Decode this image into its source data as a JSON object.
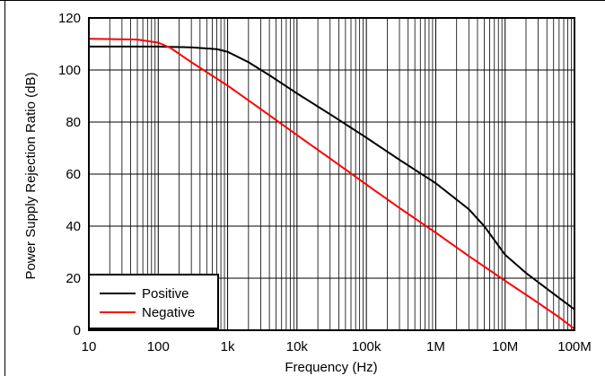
{
  "chart_data": {
    "type": "line",
    "title": "",
    "xlabel": "Frequency (Hz)",
    "ylabel": "Power Supply Rejection Ratio (dB)",
    "x_scale": "log",
    "xlim": [
      10,
      100000000
    ],
    "ylim": [
      0,
      120
    ],
    "grid": true,
    "legend_position": "bottom-left",
    "x_ticks": [
      {
        "value": 10,
        "label": "10"
      },
      {
        "value": 100,
        "label": "100"
      },
      {
        "value": 1000,
        "label": "1k"
      },
      {
        "value": 10000,
        "label": "10k"
      },
      {
        "value": 100000,
        "label": "100k"
      },
      {
        "value": 1000000,
        "label": "1M"
      },
      {
        "value": 10000000,
        "label": "10M"
      },
      {
        "value": 100000000,
        "label": "100M"
      }
    ],
    "y_ticks": [
      {
        "value": 0,
        "label": "0"
      },
      {
        "value": 20,
        "label": "20"
      },
      {
        "value": 40,
        "label": "40"
      },
      {
        "value": 60,
        "label": "60"
      },
      {
        "value": 80,
        "label": "80"
      },
      {
        "value": 100,
        "label": "100"
      },
      {
        "value": 120,
        "label": "120"
      }
    ],
    "series": [
      {
        "name": "Positive",
        "color": "#000000",
        "points": [
          [
            10,
            109
          ],
          [
            100,
            109
          ],
          [
            300,
            108.7
          ],
          [
            700,
            108
          ],
          [
            1000,
            107
          ],
          [
            2000,
            103
          ],
          [
            4000,
            98
          ],
          [
            10000,
            91
          ],
          [
            30000,
            83
          ],
          [
            100000,
            74
          ],
          [
            300000,
            65.5
          ],
          [
            1000000,
            56.5
          ],
          [
            3000000,
            46.5
          ],
          [
            5000000,
            40
          ],
          [
            10000000,
            29
          ],
          [
            20000000,
            22
          ],
          [
            50000000,
            14
          ],
          [
            100000000,
            8
          ]
        ]
      },
      {
        "name": "Negative",
        "color": "#ff0000",
        "points": [
          [
            10,
            112
          ],
          [
            50,
            111.7
          ],
          [
            100,
            110.5
          ],
          [
            150,
            108.5
          ],
          [
            300,
            103
          ],
          [
            1000,
            94
          ],
          [
            3000,
            85
          ],
          [
            10000,
            75
          ],
          [
            30000,
            66
          ],
          [
            100000,
            56
          ],
          [
            300000,
            47
          ],
          [
            1000000,
            37.5
          ],
          [
            3000000,
            28.5
          ],
          [
            10000000,
            19
          ],
          [
            30000000,
            10.5
          ],
          [
            60000000,
            5
          ],
          [
            100000000,
            0.5
          ]
        ]
      }
    ]
  }
}
